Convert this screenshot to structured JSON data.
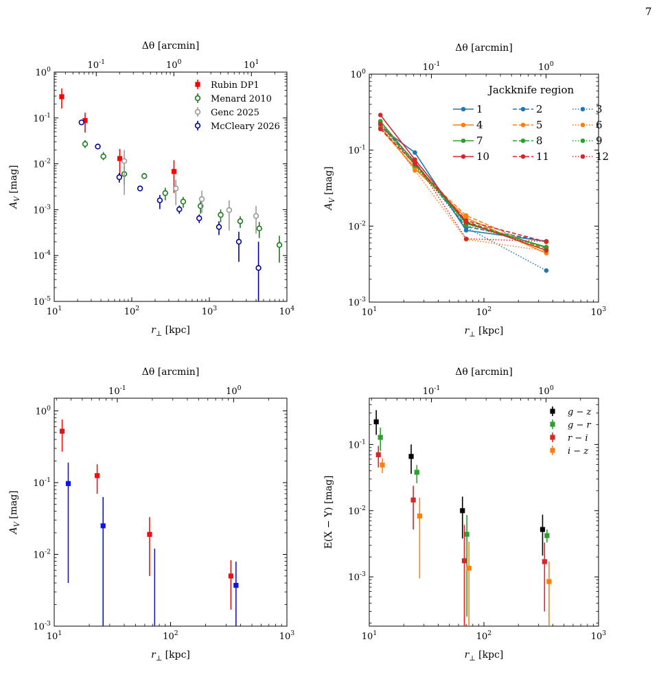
{
  "page": {
    "number": "7"
  },
  "chart_data": [
    {
      "id": "p1",
      "type": "scatter",
      "xlabel": "r_⊥ [kpc]",
      "ylabel": "A_V [mag]",
      "top_xlabel": "Δθ [arcmin]",
      "xscale": "log",
      "yscale": "log",
      "xlim": [
        10,
        10000
      ],
      "ylim": [
        1e-05,
        1
      ],
      "top_xlim": [
        0.0287,
        28.7
      ],
      "xticks": [
        {
          "v": 10,
          "label": "10^1"
        },
        {
          "v": 100,
          "label": "10^2"
        },
        {
          "v": 1000,
          "label": "10^3"
        },
        {
          "v": 10000,
          "label": "10^4"
        }
      ],
      "yticks": [
        {
          "v": 1e-05,
          "label": "10^-5"
        },
        {
          "v": 0.0001,
          "label": "10^-4"
        },
        {
          "v": 0.001,
          "label": "10^-3"
        },
        {
          "v": 0.01,
          "label": "10^-2"
        },
        {
          "v": 0.1,
          "label": "10^-1"
        },
        {
          "v": 1,
          "label": "10^0"
        }
      ],
      "top_xticks": [
        {
          "v": 0.1,
          "label": "10^-1"
        },
        {
          "v": 1,
          "label": "10^0"
        },
        {
          "v": 10,
          "label": "10^1"
        }
      ],
      "legend": {
        "position": "top-right",
        "title": ""
      },
      "series": [
        {
          "name": "Rubin DP1",
          "color": "#ff0000",
          "marker": "square",
          "points": [
            [
              12.5,
              0.29,
              0.16,
              0.44
            ],
            [
              25,
              0.088,
              0.048,
              0.13
            ],
            [
              70,
              0.013,
              0.0055,
              0.021
            ],
            [
              350,
              0.0068,
              0.0023,
              0.012
            ]
          ]
        },
        {
          "name": "Menard 2010",
          "color": "#1a7a1a",
          "marker": "circle-open",
          "points": [
            [
              25,
              0.027,
              0.022,
              0.033
            ],
            [
              43,
              0.0145,
              0.012,
              0.018
            ],
            [
              80,
              0.006,
              0.0035,
              0.0088
            ],
            [
              145,
              0.0054,
              0.0047,
              0.0063
            ],
            [
              270,
              0.0023,
              0.0016,
              0.003
            ],
            [
              460,
              0.0015,
              0.0011,
              0.0019
            ],
            [
              770,
              0.0012,
              0.00082,
              0.0016
            ],
            [
              1400,
              0.00077,
              0.00053,
              0.00101
            ],
            [
              2500,
              0.00056,
              0.0004,
              0.00072
            ],
            [
              4400,
              0.00039,
              0.00024,
              0.00054
            ],
            [
              8000,
              0.00017,
              7e-05,
              0.00027
            ]
          ]
        },
        {
          "name": "Genc 2025",
          "color": "#999999",
          "marker": "circle-open",
          "points": [
            [
              80,
              0.0115,
              0.0021,
              0.02
            ],
            [
              370,
              0.0029,
              0.00125,
              0.0045
            ],
            [
              800,
              0.0017,
              0.00085,
              0.0026
            ],
            [
              1800,
              0.00098,
              0.00035,
              0.0016
            ],
            [
              4000,
              0.00073,
              0.0003,
              0.0012
            ]
          ]
        },
        {
          "name": "McCleary 2026",
          "color": "#000099",
          "marker": "circle-open",
          "points": [
            [
              22.5,
              0.08,
              0.071,
              0.089
            ],
            [
              36.5,
              0.0238,
              0.0213,
              0.026
            ],
            [
              69,
              0.0051,
              0.0039,
              0.0063
            ],
            [
              128,
              0.0029,
              0.0026,
              0.0032
            ],
            [
              230,
              0.0016,
              0.00103,
              0.0021
            ],
            [
              410,
              0.00102,
              0.00081,
              0.00123
            ],
            [
              740,
              0.00065,
              0.00051,
              0.00079
            ],
            [
              1330,
              0.00042,
              0.00028,
              0.00056
            ],
            [
              2400,
              0.0002,
              7.3e-05,
              0.00033
            ],
            [
              4300,
              5.36e-05,
              9.5e-06,
              0.0002
            ]
          ]
        }
      ]
    },
    {
      "id": "p2",
      "type": "line",
      "xlabel": "r_⊥ [kpc]",
      "ylabel": "A_V [mag]",
      "top_xlabel": "Δθ [arcmin]",
      "xscale": "log",
      "yscale": "log",
      "xlim": [
        10,
        1000
      ],
      "ylim": [
        0.001,
        1
      ],
      "top_xlim": [
        0.0287,
        2.87
      ],
      "xticks": [
        {
          "v": 10,
          "label": "10^1"
        },
        {
          "v": 100,
          "label": "10^2"
        },
        {
          "v": 1000,
          "label": "10^3"
        }
      ],
      "yticks": [
        {
          "v": 0.001,
          "label": "10^-3"
        },
        {
          "v": 0.01,
          "label": "10^-2"
        },
        {
          "v": 0.1,
          "label": "10^-1"
        },
        {
          "v": 1,
          "label": "10^0"
        }
      ],
      "top_xticks": [
        {
          "v": 0.1,
          "label": "10^-1"
        },
        {
          "v": 1,
          "label": "10^0"
        }
      ],
      "legend": {
        "position": "top-right",
        "title": "Jackknife region",
        "columns": 3
      },
      "x": [
        12.5,
        25,
        70,
        350
      ],
      "series": [
        {
          "name": "1",
          "color": "#1f77b4",
          "dash": "solid",
          "values": [
            0.2,
            0.093,
            0.0088,
            0.0063
          ]
        },
        {
          "name": "2",
          "color": "#1f77b4",
          "dash": "dashed",
          "values": [
            0.22,
            0.07,
            0.0098,
            0.0063
          ]
        },
        {
          "name": "3",
          "color": "#1f77b4",
          "dash": "dotted",
          "values": [
            0.21,
            0.066,
            0.0096,
            0.0026
          ]
        },
        {
          "name": "4",
          "color": "#ff7f0e",
          "dash": "solid",
          "values": [
            0.2,
            0.057,
            0.0128,
            0.0044
          ]
        },
        {
          "name": "5",
          "color": "#ff7f0e",
          "dash": "dashed",
          "values": [
            0.19,
            0.059,
            0.0138,
            0.0048
          ]
        },
        {
          "name": "6",
          "color": "#ff7f0e",
          "dash": "dotted",
          "values": [
            0.21,
            0.054,
            0.0067,
            0.0047
          ]
        },
        {
          "name": "7",
          "color": "#2ca02c",
          "dash": "solid",
          "values": [
            0.24,
            0.068,
            0.0108,
            0.0053
          ]
        },
        {
          "name": "8",
          "color": "#2ca02c",
          "dash": "dashed",
          "values": [
            0.22,
            0.064,
            0.0115,
            0.0051
          ]
        },
        {
          "name": "9",
          "color": "#2ca02c",
          "dash": "dotted",
          "values": [
            0.23,
            0.063,
            0.0103,
            0.0052
          ]
        },
        {
          "name": "10",
          "color": "#d62728",
          "dash": "solid",
          "values": [
            0.29,
            0.075,
            0.0112,
            0.0048
          ]
        },
        {
          "name": "11",
          "color": "#d62728",
          "dash": "dashed",
          "values": [
            0.19,
            0.066,
            0.0118,
            0.0062
          ]
        },
        {
          "name": "12",
          "color": "#d62728",
          "dash": "dotted",
          "values": [
            0.22,
            0.071,
            0.0068,
            0.0063
          ]
        }
      ]
    },
    {
      "id": "p3",
      "type": "scatter",
      "xlabel": "r_⊥ [kpc]",
      "ylabel": "A_V [mag]",
      "top_xlabel": "Δθ [arcmin]",
      "xscale": "log",
      "yscale": "log",
      "xlim": [
        10,
        1000
      ],
      "ylim": [
        0.001,
        1.5
      ],
      "top_xlim": [
        0.0287,
        2.87
      ],
      "xticks": [
        {
          "v": 10,
          "label": "10^1"
        },
        {
          "v": 100,
          "label": "10^2"
        },
        {
          "v": 1000,
          "label": "10^3"
        }
      ],
      "yticks": [
        {
          "v": 0.001,
          "label": "10^-3"
        },
        {
          "v": 0.01,
          "label": "10^-2"
        },
        {
          "v": 0.1,
          "label": "10^-1"
        },
        {
          "v": 1,
          "label": "10^0"
        }
      ],
      "top_xticks": [
        {
          "v": 0.1,
          "label": "10^-1"
        },
        {
          "v": 1,
          "label": "10^0"
        }
      ],
      "series": [
        {
          "color": "#ee1111",
          "marker": "square",
          "points": [
            [
              11.7,
              0.52,
              0.27,
              0.76
            ],
            [
              23.4,
              0.125,
              0.07,
              0.18
            ],
            [
              66,
              0.019,
              0.005,
              0.033
            ],
            [
              330,
              0.005,
              0.0017,
              0.0083
            ]
          ]
        },
        {
          "color": "#1111ee",
          "marker": "square",
          "points": [
            [
              13.2,
              0.097,
              0.004,
              0.19
            ],
            [
              26.3,
              0.025,
              0.001,
              0.063
            ],
            [
              73,
              null,
              0.001,
              0.012
            ],
            [
              365,
              0.0037,
              0.001,
              0.0079
            ]
          ]
        }
      ]
    },
    {
      "id": "p4",
      "type": "scatter",
      "xlabel": "r_⊥ [kpc]",
      "ylabel": "E(X − Y) [mag]",
      "top_xlabel": "Δθ [arcmin]",
      "xscale": "log",
      "yscale": "log",
      "xlim": [
        10,
        1000
      ],
      "ylim": [
        0.00018,
        0.5
      ],
      "top_xlim": [
        0.0287,
        2.87
      ],
      "xticks": [
        {
          "v": 10,
          "label": "10^1"
        },
        {
          "v": 100,
          "label": "10^2"
        },
        {
          "v": 1000,
          "label": "10^3"
        }
      ],
      "yticks": [
        {
          "v": 0.001,
          "label": "10^-3"
        },
        {
          "v": 0.01,
          "label": "10^-2"
        },
        {
          "v": 0.1,
          "label": "10^-1"
        }
      ],
      "top_xticks": [
        {
          "v": 0.1,
          "label": "10^-1"
        },
        {
          "v": 1,
          "label": "10^0"
        }
      ],
      "legend": {
        "position": "top-right",
        "title": ""
      },
      "series": [
        {
          "name": "g − z",
          "color": "#000000",
          "marker": "square",
          "points": [
            [
              11.5,
              0.22,
              0.14,
              0.33
            ],
            [
              23.2,
              0.066,
              0.036,
              0.1
            ],
            [
              65,
              0.01,
              0.0038,
              0.0163
            ],
            [
              325,
              0.0052,
              0.0021,
              0.0087
            ]
          ]
        },
        {
          "name": "g − r",
          "color": "#2ca02c",
          "marker": "square",
          "points": [
            [
              12.5,
              0.128,
              0.08,
              0.18
            ],
            [
              26,
              0.038,
              0.026,
              0.049
            ],
            [
              71,
              0.0044,
              0.00025,
              0.0086
            ],
            [
              355,
              0.0042,
              0.0033,
              0.0052
            ]
          ]
        },
        {
          "name": "r − i",
          "color": "#d62728",
          "marker": "square",
          "points": [
            [
              12,
              0.07,
              0.045,
              0.095
            ],
            [
              24.2,
              0.0145,
              0.0052,
              0.0238
            ],
            [
              67.5,
              0.00175,
              0.00018,
              0.0061
            ],
            [
              338,
              0.0017,
              0.0003,
              0.0033
            ]
          ]
        },
        {
          "name": "i − z",
          "color": "#ff7f0e",
          "marker": "square",
          "points": [
            [
              13,
              0.049,
              0.037,
              0.062
            ],
            [
              27.5,
              0.0083,
              0.00095,
              0.0157
            ],
            [
              74,
              0.00135,
              0.00018,
              0.0034
            ],
            [
              370,
              0.00085,
              0.00018,
              0.0017
            ]
          ]
        }
      ]
    }
  ]
}
